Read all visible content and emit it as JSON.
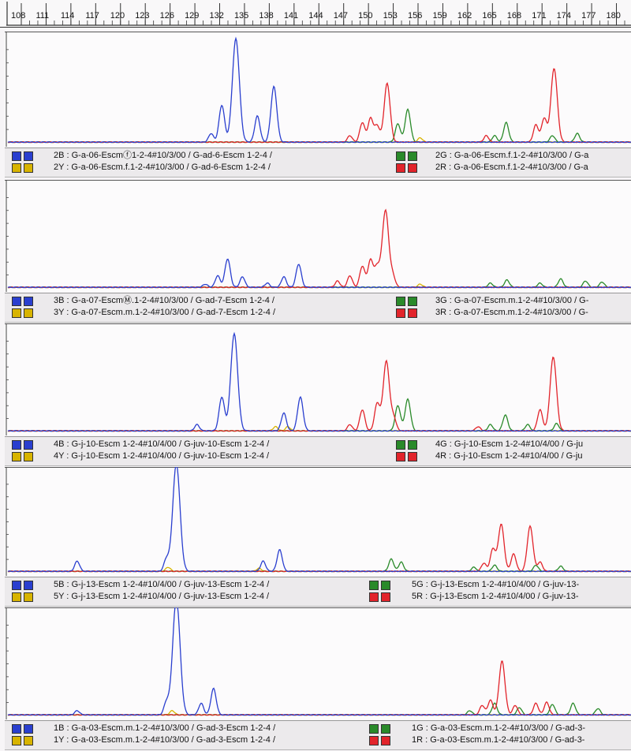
{
  "chart_data": {
    "type": "line",
    "x_ticks": [
      "108",
      "111",
      "114",
      "117",
      "120",
      "123",
      "126",
      "129",
      "132",
      "135",
      "138",
      "141",
      "144",
      "147",
      "150",
      "153",
      "156",
      "159",
      "162",
      "165",
      "168",
      "171",
      "174",
      "177",
      "180"
    ],
    "x_range": [
      108,
      181
    ],
    "y_range": [
      0,
      100
    ],
    "colors": {
      "B": "#2a3fcf",
      "G": "#2a8a2a",
      "R": "#e2242b",
      "Y": "#d8b400"
    },
    "panels": [
      {
        "legend": [
          {
            "dye": "B",
            "text": "2B : G-a-06-Escmⓕ1-2-4#10/3/00 / G-ad-6-Escm 1-2-4 /"
          },
          {
            "dye": "Y",
            "text": "2Y : G-a-06-Escm.f.1-2-4#10/3/00 / G-ad-6-Escm 1-2-4 /"
          },
          {
            "dye": "G",
            "text": "2G : G-a-06-Escm.f.1-2-4#10/3/00 / G-a"
          },
          {
            "dye": "R",
            "text": "2R : G-a-06-Escm.f.1-2-4#10/3/00 / G-a"
          }
        ],
        "series": [
          {
            "dye": "B",
            "peaks": [
              [
                132.2,
                8
              ],
              [
                133.5,
                34
              ],
              [
                135.2,
                95
              ],
              [
                137.8,
                24
              ],
              [
                139.8,
                51
              ]
            ]
          },
          {
            "dye": "G",
            "peaks": [
              [
                154.8,
                17
              ],
              [
                156.0,
                30
              ],
              [
                166.5,
                6
              ],
              [
                167.9,
                18
              ],
              [
                173.5,
                6
              ],
              [
                176.5,
                8
              ]
            ]
          },
          {
            "dye": "R",
            "peaks": [
              [
                149.0,
                6
              ],
              [
                150.5,
                18
              ],
              [
                151.5,
                22
              ],
              [
                152.3,
                15
              ],
              [
                153.5,
                54
              ],
              [
                165.5,
                6
              ],
              [
                171.5,
                16
              ],
              [
                172.5,
                22
              ],
              [
                173.7,
                68
              ]
            ]
          },
          {
            "dye": "Y",
            "peaks": [
              [
                157.5,
                4
              ]
            ]
          }
        ]
      },
      {
        "legend": [
          {
            "dye": "B",
            "text": "3B : G-a-07-EscmⓂ.1-2-4#10/3/00 / G-ad-7-Escm 1-2-4 /"
          },
          {
            "dye": "Y",
            "text": "3Y : G-a-07-Escm.m.1-2-4#10/3/00 / G-ad-7-Escm 1-2-4 /"
          },
          {
            "dye": "G",
            "text": "3G : G-a-07-Escm.m.1-2-4#10/3/00 / G-"
          },
          {
            "dye": "R",
            "text": "3R : G-a-07-Escm.m.1-2-4#10/3/00 / G-"
          }
        ],
        "series": [
          {
            "dye": "B",
            "peaks": [
              [
                131.5,
                3
              ],
              [
                133.0,
                11
              ],
              [
                134.2,
                27
              ],
              [
                136.0,
                10
              ],
              [
                139.0,
                4
              ],
              [
                141.0,
                10
              ],
              [
                142.8,
                22
              ]
            ]
          },
          {
            "dye": "G",
            "peaks": [
              [
                166.0,
                4
              ],
              [
                168.0,
                7
              ],
              [
                172.0,
                4
              ],
              [
                174.5,
                8
              ],
              [
                177.5,
                6
              ],
              [
                179.5,
                5
              ]
            ]
          },
          {
            "dye": "R",
            "peaks": [
              [
                147.5,
                6
              ],
              [
                149.0,
                11
              ],
              [
                150.5,
                20
              ],
              [
                151.5,
                26
              ],
              [
                152.3,
                19
              ],
              [
                153.3,
                73
              ],
              [
                154.2,
                10
              ]
            ]
          },
          {
            "dye": "Y",
            "peaks": [
              [
                157.5,
                3
              ]
            ]
          }
        ]
      },
      {
        "legend": [
          {
            "dye": "B",
            "text": "4B : G-j-10-Escm 1-2-4#10/4/00 / G-juv-10-Escm 1-2-4 /"
          },
          {
            "dye": "Y",
            "text": "4Y : G-j-10-Escm 1-2-4#10/4/00 / G-juv-10-Escm 1-2-4 /"
          },
          {
            "dye": "G",
            "text": "4G : G-j-10-Escm 1-2-4#10/4/00 / G-ju"
          },
          {
            "dye": "R",
            "text": "4R : G-j-10-Escm 1-2-4#10/4/00 / G-ju"
          }
        ],
        "series": [
          {
            "dye": "B",
            "peaks": [
              [
                130.5,
                6
              ],
              [
                133.5,
                32
              ],
              [
                135.0,
                92
              ],
              [
                141.0,
                17
              ],
              [
                143.0,
                32
              ]
            ]
          },
          {
            "dye": "G",
            "peaks": [
              [
                154.8,
                24
              ],
              [
                156.0,
                30
              ],
              [
                166.0,
                6
              ],
              [
                167.8,
                15
              ],
              [
                170.5,
                6
              ],
              [
                174.0,
                7
              ]
            ]
          },
          {
            "dye": "R",
            "peaks": [
              [
                149.0,
                6
              ],
              [
                150.5,
                20
              ],
              [
                152.3,
                26
              ],
              [
                153.4,
                66
              ],
              [
                154.3,
                12
              ],
              [
                164.5,
                4
              ],
              [
                172.0,
                20
              ],
              [
                173.6,
                70
              ]
            ]
          },
          {
            "dye": "Y",
            "peaks": [
              [
                140.0,
                4
              ],
              [
                141.5,
                4
              ]
            ]
          }
        ]
      },
      {
        "legend": [
          {
            "dye": "B",
            "text": "5B : G-j-13-Escm 1-2-4#10/4/00 / G-juv-13-Escm 1-2-4 /"
          },
          {
            "dye": "Y",
            "text": "5Y : G-j-13-Escm 1-2-4#10/4/00 / G-juv-13-Escm 1-2-4 /"
          },
          {
            "dye": "G",
            "text": "5G : G-j-13-Escm 1-2-4#10/4/00 / G-juv-13-"
          },
          {
            "dye": "R",
            "text": "5R : G-j-13-Escm 1-2-4#10/4/00 / G-juv-13-"
          }
        ],
        "series": [
          {
            "dye": "B",
            "peaks": [
              [
                116.0,
                10
              ],
              [
                126.8,
                12
              ],
              [
                128.0,
                105
              ],
              [
                138.5,
                10
              ],
              [
                140.5,
                21
              ]
            ]
          },
          {
            "dye": "G",
            "peaks": [
              [
                154.0,
                12
              ],
              [
                155.2,
                9
              ],
              [
                164.0,
                4
              ],
              [
                166.5,
                6
              ],
              [
                171.5,
                6
              ],
              [
                174.5,
                5
              ]
            ]
          },
          {
            "dye": "R",
            "peaks": [
              [
                165.2,
                8
              ],
              [
                166.3,
                22
              ],
              [
                167.3,
                46
              ],
              [
                168.8,
                17
              ],
              [
                170.8,
                44
              ],
              [
                172.0,
                9
              ]
            ]
          },
          {
            "dye": "Y",
            "peaks": [
              [
                127.0,
                4
              ],
              [
                138.0,
                3
              ]
            ]
          }
        ]
      },
      {
        "legend": [
          {
            "dye": "B",
            "text": "1B : G-a-03-Escm.m.1-2-4#10/3/00 / G-ad-3-Escm 1-2-4 /"
          },
          {
            "dye": "Y",
            "text": "1Y : G-a-03-Escm.m.1-2-4#10/3/00 / G-ad-3-Escm 1-2-4 /"
          },
          {
            "dye": "G",
            "text": "1G : G-a-03-Escm.m.1-2-4#10/3/00 / G-ad-3-"
          },
          {
            "dye": "R",
            "text": "1R : G-a-03-Escm.m.1-2-4#10/3/00 / G-ad-3-"
          }
        ],
        "series": [
          {
            "dye": "B",
            "peaks": [
              [
                116.0,
                4
              ],
              [
                126.8,
                12
              ],
              [
                128.0,
                110
              ],
              [
                131.0,
                11
              ],
              [
                132.5,
                25
              ]
            ]
          },
          {
            "dye": "G",
            "peaks": [
              [
                163.5,
                4
              ],
              [
                166.5,
                11
              ],
              [
                169.5,
                7
              ],
              [
                173.5,
                10
              ],
              [
                176.0,
                11
              ],
              [
                179.0,
                6
              ]
            ]
          },
          {
            "dye": "R",
            "peaks": [
              [
                165.0,
                9
              ],
              [
                166.0,
                14
              ],
              [
                167.4,
                51
              ],
              [
                169.0,
                9
              ],
              [
                171.5,
                11
              ],
              [
                172.8,
                12
              ]
            ]
          },
          {
            "dye": "Y",
            "peaks": [
              [
                127.5,
                4
              ]
            ]
          }
        ]
      }
    ]
  }
}
